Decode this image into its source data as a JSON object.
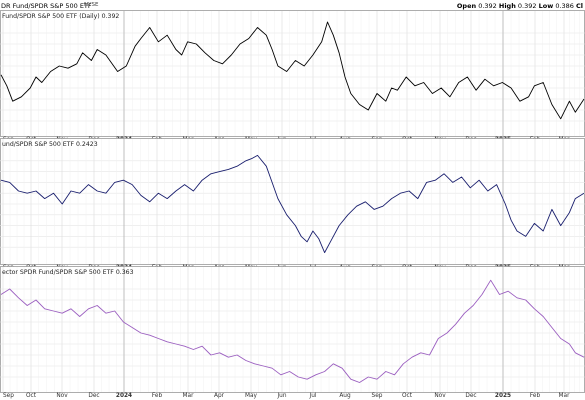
{
  "header": {
    "title": "DR Fund/SPDR S&P 500 ETF",
    "exchange": "NYSE",
    "ohlc": [
      {
        "label": "Open",
        "value": "0.392"
      },
      {
        "label": "High",
        "value": "0.392"
      },
      {
        "label": "Low",
        "value": "0.386"
      },
      {
        "label": "Cl",
        "value": ""
      }
    ]
  },
  "chart_data": [
    {
      "type": "line",
      "title": "Fund/SPDR S&P 500 ETF (Daily) 0.392",
      "grid": true,
      "color": "#000000",
      "x_labels": [
        "Sep",
        "Oct",
        "Nov",
        "Dec",
        "2024",
        "Feb",
        "Mar",
        "Apr",
        "May",
        "Jun",
        "Jul",
        "Aug",
        "Sep",
        "Oct",
        "Nov",
        "Dec",
        "2025",
        "Feb",
        "Mar"
      ],
      "ylim": [
        0,
        1
      ],
      "x": [
        0,
        0.01,
        0.02,
        0.035,
        0.05,
        0.06,
        0.07,
        0.085,
        0.1,
        0.115,
        0.13,
        0.14,
        0.155,
        0.165,
        0.18,
        0.2,
        0.215,
        0.23,
        0.24,
        0.255,
        0.27,
        0.285,
        0.3,
        0.31,
        0.32,
        0.335,
        0.35,
        0.365,
        0.38,
        0.395,
        0.41,
        0.425,
        0.44,
        0.455,
        0.465,
        0.475,
        0.49,
        0.505,
        0.52,
        0.535,
        0.55,
        0.56,
        0.57,
        0.58,
        0.59,
        0.6,
        0.615,
        0.63,
        0.645,
        0.66,
        0.67,
        0.68,
        0.695,
        0.71,
        0.725,
        0.74,
        0.755,
        0.77,
        0.785,
        0.8,
        0.815,
        0.83,
        0.845,
        0.86,
        0.875,
        0.89,
        0.905,
        0.915,
        0.93,
        0.945,
        0.96,
        0.975,
        0.985,
        1
      ],
      "y": [
        0.52,
        0.42,
        0.28,
        0.32,
        0.4,
        0.5,
        0.45,
        0.55,
        0.6,
        0.58,
        0.62,
        0.72,
        0.65,
        0.75,
        0.7,
        0.55,
        0.6,
        0.78,
        0.85,
        0.95,
        0.82,
        0.88,
        0.75,
        0.7,
        0.82,
        0.8,
        0.72,
        0.65,
        0.62,
        0.7,
        0.8,
        0.85,
        0.95,
        0.88,
        0.75,
        0.6,
        0.55,
        0.65,
        0.6,
        0.7,
        0.82,
        1.0,
        0.88,
        0.72,
        0.5,
        0.35,
        0.25,
        0.2,
        0.35,
        0.28,
        0.4,
        0.38,
        0.5,
        0.42,
        0.45,
        0.35,
        0.4,
        0.32,
        0.45,
        0.5,
        0.38,
        0.48,
        0.42,
        0.45,
        0.4,
        0.28,
        0.32,
        0.42,
        0.45,
        0.25,
        0.12,
        0.28,
        0.18,
        0.3
      ]
    },
    {
      "type": "line",
      "title": "und/SPDR S&P 500 ETF 0.2423",
      "grid": true,
      "color": "#1a1f6e",
      "x_labels": [
        "Sep",
        "Oct",
        "Nov",
        "Dec",
        "2024",
        "Feb",
        "Mar",
        "Apr",
        "May",
        "Jun",
        "Jul",
        "Aug",
        "Sep",
        "Oct",
        "Nov",
        "Dec",
        "2025",
        "Feb",
        "Mar"
      ],
      "ylim": [
        0,
        1
      ],
      "x": [
        0,
        0.015,
        0.03,
        0.045,
        0.06,
        0.075,
        0.09,
        0.105,
        0.12,
        0.135,
        0.15,
        0.165,
        0.18,
        0.195,
        0.21,
        0.225,
        0.24,
        0.255,
        0.27,
        0.285,
        0.3,
        0.315,
        0.33,
        0.345,
        0.36,
        0.375,
        0.39,
        0.405,
        0.42,
        0.43,
        0.44,
        0.455,
        0.465,
        0.475,
        0.49,
        0.505,
        0.515,
        0.525,
        0.535,
        0.545,
        0.555,
        0.565,
        0.58,
        0.595,
        0.61,
        0.625,
        0.64,
        0.655,
        0.67,
        0.685,
        0.7,
        0.715,
        0.73,
        0.745,
        0.76,
        0.775,
        0.79,
        0.805,
        0.82,
        0.835,
        0.85,
        0.865,
        0.875,
        0.885,
        0.9,
        0.915,
        0.93,
        0.945,
        0.96,
        0.975,
        0.985,
        1
      ],
      "y": [
        0.72,
        0.7,
        0.62,
        0.6,
        0.62,
        0.55,
        0.6,
        0.5,
        0.62,
        0.6,
        0.68,
        0.62,
        0.6,
        0.7,
        0.72,
        0.68,
        0.58,
        0.52,
        0.6,
        0.55,
        0.62,
        0.68,
        0.62,
        0.72,
        0.78,
        0.8,
        0.82,
        0.85,
        0.9,
        0.92,
        0.95,
        0.85,
        0.7,
        0.55,
        0.4,
        0.3,
        0.2,
        0.15,
        0.25,
        0.18,
        0.05,
        0.15,
        0.3,
        0.4,
        0.48,
        0.52,
        0.45,
        0.48,
        0.55,
        0.6,
        0.62,
        0.55,
        0.7,
        0.72,
        0.78,
        0.7,
        0.75,
        0.65,
        0.72,
        0.62,
        0.68,
        0.5,
        0.35,
        0.25,
        0.2,
        0.32,
        0.25,
        0.45,
        0.3,
        0.42,
        0.55,
        0.6
      ]
    },
    {
      "type": "line",
      "title": "ector SPDR Fund/SPDR S&P 500 ETF 0.363",
      "grid": true,
      "color": "#9b5fc0",
      "x_labels": [
        "Sep",
        "Oct",
        "Nov",
        "Dec",
        "2024",
        "Feb",
        "Mar",
        "Apr",
        "May",
        "Jun",
        "Jul",
        "Aug",
        "Sep",
        "Oct",
        "Nov",
        "Dec",
        "2025",
        "Feb",
        "Mar"
      ],
      "ylim": [
        0,
        1
      ],
      "x": [
        0,
        0.015,
        0.03,
        0.045,
        0.06,
        0.075,
        0.09,
        0.105,
        0.12,
        0.135,
        0.15,
        0.165,
        0.18,
        0.195,
        0.21,
        0.225,
        0.24,
        0.255,
        0.27,
        0.285,
        0.3,
        0.315,
        0.33,
        0.345,
        0.36,
        0.375,
        0.39,
        0.405,
        0.42,
        0.435,
        0.45,
        0.465,
        0.48,
        0.495,
        0.51,
        0.525,
        0.54,
        0.555,
        0.57,
        0.585,
        0.6,
        0.615,
        0.63,
        0.645,
        0.66,
        0.675,
        0.69,
        0.705,
        0.72,
        0.735,
        0.75,
        0.765,
        0.78,
        0.795,
        0.81,
        0.825,
        0.84,
        0.855,
        0.87,
        0.885,
        0.9,
        0.915,
        0.93,
        0.945,
        0.96,
        0.975,
        0.985,
        1
      ],
      "y": [
        0.85,
        0.9,
        0.82,
        0.75,
        0.8,
        0.72,
        0.7,
        0.68,
        0.72,
        0.65,
        0.72,
        0.75,
        0.68,
        0.7,
        0.6,
        0.55,
        0.5,
        0.48,
        0.45,
        0.42,
        0.4,
        0.38,
        0.35,
        0.38,
        0.3,
        0.32,
        0.28,
        0.3,
        0.25,
        0.22,
        0.2,
        0.18,
        0.12,
        0.15,
        0.1,
        0.08,
        0.12,
        0.15,
        0.22,
        0.18,
        0.08,
        0.05,
        0.1,
        0.08,
        0.15,
        0.12,
        0.22,
        0.28,
        0.32,
        0.3,
        0.45,
        0.5,
        0.58,
        0.68,
        0.75,
        0.85,
        0.98,
        0.85,
        0.88,
        0.82,
        0.8,
        0.72,
        0.65,
        0.55,
        0.45,
        0.4,
        0.32,
        0.28
      ]
    }
  ]
}
